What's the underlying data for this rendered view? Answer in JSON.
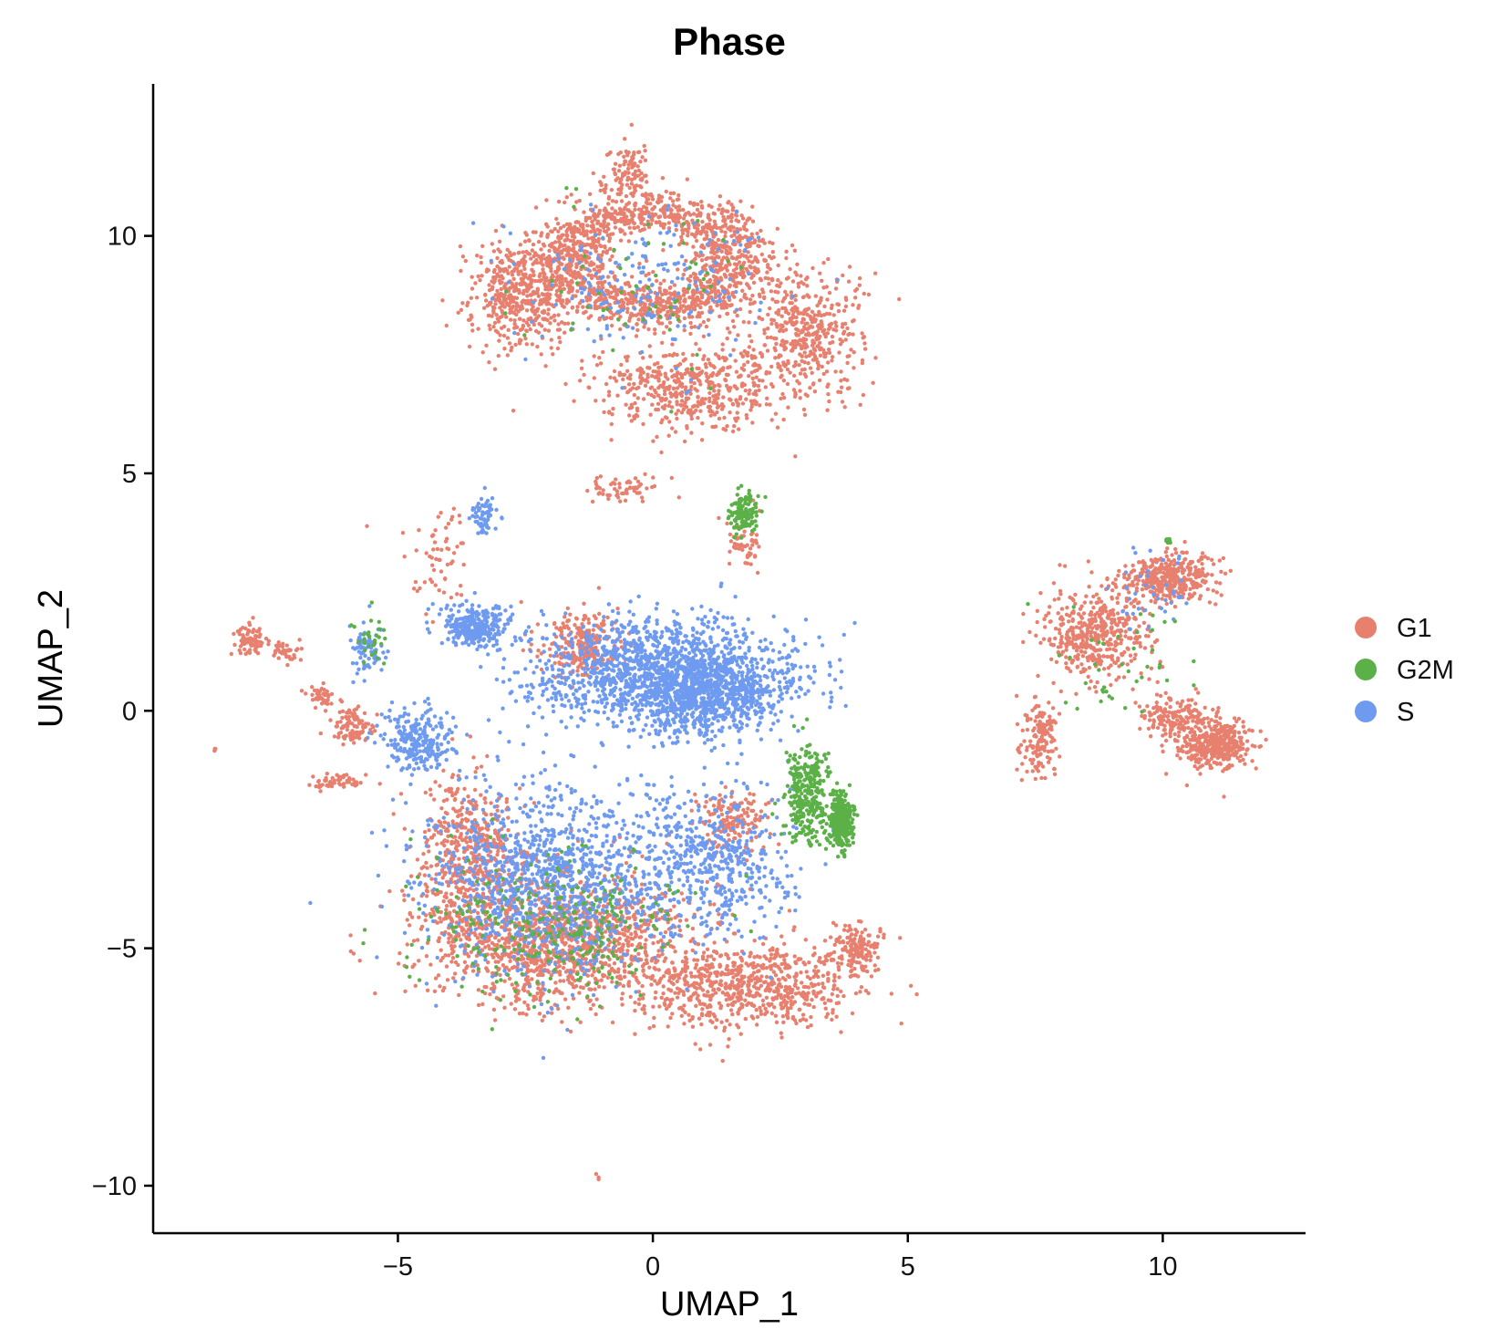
{
  "chart_data": {
    "type": "scatter",
    "title": "Phase",
    "xlabel": "UMAP_1",
    "ylabel": "UMAP_2",
    "xlim": [
      -9.8,
      12.8
    ],
    "ylim": [
      -11.0,
      13.2
    ],
    "xticks": [
      -5,
      0,
      5,
      10
    ],
    "xtick_labels": [
      "−5",
      "0",
      "5",
      "10"
    ],
    "yticks": [
      -10,
      -5,
      0,
      5,
      10
    ],
    "ytick_labels": [
      "−10",
      "−5",
      "0",
      "5",
      "10"
    ],
    "grid": false,
    "legend_position": "right",
    "legend": [
      "G1",
      "G2M",
      "S"
    ],
    "colors": {
      "G1": "#E8806F",
      "G2M": "#5BB147",
      "S": "#6E9AF0"
    },
    "series": [
      {
        "name": "G1",
        "clusters": [
          {
            "x": 0.0,
            "y": 9.5,
            "sx": 2.6,
            "sy": 1.6,
            "n": 1500,
            "ring": true
          },
          {
            "x": -2.6,
            "y": 8.8,
            "sx": 0.9,
            "sy": 1.1,
            "n": 500
          },
          {
            "x": 3.0,
            "y": 8.0,
            "sx": 1.0,
            "sy": 1.2,
            "n": 450
          },
          {
            "x": 0.8,
            "y": 6.8,
            "sx": 1.8,
            "sy": 0.8,
            "n": 500
          },
          {
            "x": -0.5,
            "y": 11.3,
            "sx": 0.5,
            "sy": 0.5,
            "n": 100
          },
          {
            "x": -0.6,
            "y": 4.7,
            "sx": 0.6,
            "sy": 0.2,
            "n": 60
          },
          {
            "x": 1.8,
            "y": 3.6,
            "sx": 0.3,
            "sy": 0.6,
            "n": 60
          },
          {
            "x": -1.8,
            "y": -4.8,
            "sx": 2.4,
            "sy": 1.3,
            "n": 1400
          },
          {
            "x": 1.8,
            "y": -5.8,
            "sx": 2.0,
            "sy": 0.8,
            "n": 700
          },
          {
            "x": -3.6,
            "y": -3.0,
            "sx": 0.9,
            "sy": 1.6,
            "n": 500
          },
          {
            "x": -1.4,
            "y": 1.4,
            "sx": 0.7,
            "sy": 0.6,
            "n": 250
          },
          {
            "x": 1.6,
            "y": -2.3,
            "sx": 0.7,
            "sy": 0.6,
            "n": 150
          },
          {
            "x": 4.0,
            "y": -5.0,
            "sx": 0.5,
            "sy": 0.5,
            "n": 150
          },
          {
            "x": 8.6,
            "y": 1.6,
            "sx": 1.0,
            "sy": 0.9,
            "n": 450
          },
          {
            "x": 10.1,
            "y": 2.8,
            "sx": 0.8,
            "sy": 0.45,
            "n": 350
          },
          {
            "x": 7.6,
            "y": -0.6,
            "sx": 0.3,
            "sy": 0.7,
            "n": 150
          },
          {
            "x": 11.0,
            "y": -0.7,
            "sx": 0.6,
            "sy": 0.45,
            "n": 400
          },
          {
            "x": 10.2,
            "y": -0.1,
            "sx": 0.6,
            "sy": 0.4,
            "n": 150
          },
          {
            "x": -7.9,
            "y": 1.5,
            "sx": 0.3,
            "sy": 0.35,
            "n": 80
          },
          {
            "x": -7.2,
            "y": 1.2,
            "sx": 0.3,
            "sy": 0.2,
            "n": 40
          },
          {
            "x": -6.5,
            "y": 0.3,
            "sx": 0.25,
            "sy": 0.2,
            "n": 40
          },
          {
            "x": -5.9,
            "y": -0.3,
            "sx": 0.4,
            "sy": 0.3,
            "n": 100
          },
          {
            "x": -6.1,
            "y": -1.5,
            "sx": 0.5,
            "sy": 0.15,
            "n": 60
          },
          {
            "x": -4.2,
            "y": 3.2,
            "sx": 0.6,
            "sy": 1.1,
            "n": 60
          },
          {
            "x": -8.6,
            "y": -0.8,
            "sx": 0.03,
            "sy": 0.05,
            "n": 3
          },
          {
            "x": -1.1,
            "y": -9.8,
            "sx": 0.04,
            "sy": 0.05,
            "n": 3
          }
        ]
      },
      {
        "name": "G2M",
        "clusters": [
          {
            "x": 3.7,
            "y": -2.3,
            "sx": 0.2,
            "sy": 0.5,
            "n": 350
          },
          {
            "x": 3.0,
            "y": -1.8,
            "sx": 0.45,
            "sy": 1.0,
            "n": 300
          },
          {
            "x": 1.8,
            "y": 4.2,
            "sx": 0.25,
            "sy": 0.35,
            "n": 120
          },
          {
            "x": -2.0,
            "y": -4.5,
            "sx": 2.4,
            "sy": 1.5,
            "n": 300
          },
          {
            "x": 0.0,
            "y": 9.0,
            "sx": 2.2,
            "sy": 1.6,
            "n": 60
          },
          {
            "x": 9.5,
            "y": 1.0,
            "sx": 1.3,
            "sy": 1.2,
            "n": 40
          },
          {
            "x": -5.5,
            "y": 1.5,
            "sx": 0.3,
            "sy": 0.5,
            "n": 30
          },
          {
            "x": 10.1,
            "y": 3.6,
            "sx": 0.08,
            "sy": 0.06,
            "n": 10
          }
        ]
      },
      {
        "name": "S",
        "clusters": [
          {
            "x": 0.2,
            "y": 0.8,
            "sx": 2.4,
            "sy": 1.0,
            "n": 1500
          },
          {
            "x": 1.0,
            "y": 0.3,
            "sx": 1.2,
            "sy": 0.8,
            "n": 600
          },
          {
            "x": -3.5,
            "y": 1.8,
            "sx": 0.6,
            "sy": 0.4,
            "n": 300
          },
          {
            "x": -2.0,
            "y": -3.5,
            "sx": 2.2,
            "sy": 1.8,
            "n": 1200
          },
          {
            "x": 1.2,
            "y": -3.2,
            "sx": 1.4,
            "sy": 1.4,
            "n": 500
          },
          {
            "x": -4.6,
            "y": -0.6,
            "sx": 0.6,
            "sy": 0.6,
            "n": 250
          },
          {
            "x": -5.6,
            "y": 1.3,
            "sx": 0.3,
            "sy": 0.6,
            "n": 80
          },
          {
            "x": -3.3,
            "y": 4.1,
            "sx": 0.25,
            "sy": 0.35,
            "n": 60
          },
          {
            "x": 0.0,
            "y": 9.0,
            "sx": 2.2,
            "sy": 1.5,
            "n": 200
          },
          {
            "x": 9.8,
            "y": 2.5,
            "sx": 1.0,
            "sy": 0.8,
            "n": 40
          }
        ]
      }
    ]
  }
}
